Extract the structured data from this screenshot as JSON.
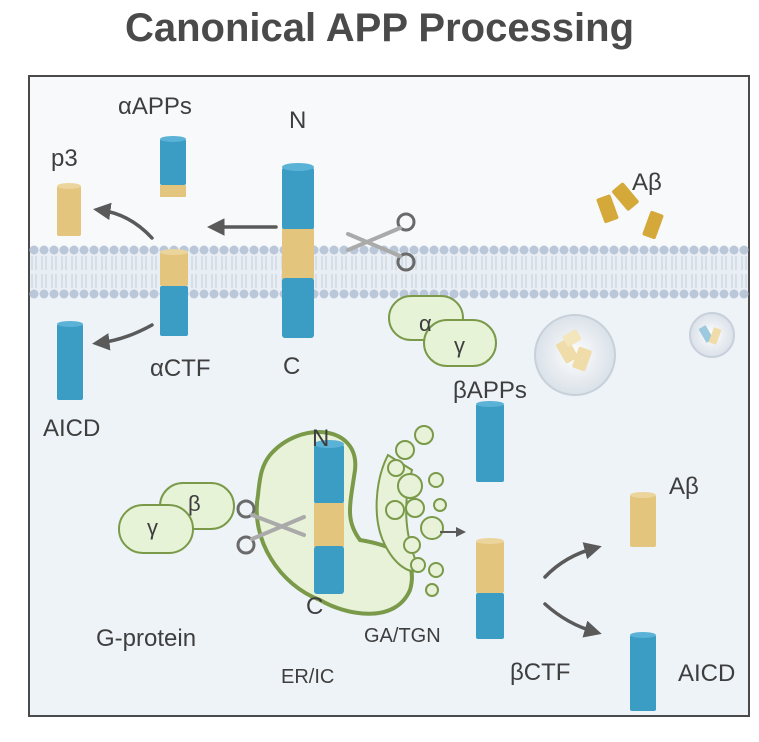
{
  "title": "Canonical APP Processing",
  "labels": {
    "alpha_apps": "αAPPs",
    "p3": "p3",
    "n_top": "N",
    "c_top": "C",
    "alpha_ctf": "αCTF",
    "aicd_left": "AICD",
    "abeta_top": "Aβ",
    "beta_apps": "βAPPs",
    "n_er": "N",
    "c_er": "C",
    "abeta_right": "Aβ",
    "beta_ctf": "βCTF",
    "aicd_right": "AICD",
    "g_protein": "G-protein",
    "er_ic": "ER/IC",
    "ga_tgn": "GA/TGN",
    "sub_alpha": "α",
    "sub_gamma_top": "γ",
    "sub_beta": "β",
    "sub_gamma_bottom": "γ"
  },
  "colors": {
    "protein_blue": "#3b9cc4",
    "protein_blue_dark": "#2f7fa3",
    "protein_tan": "#e3c57d",
    "protein_tan_dark": "#c9a95c",
    "abeta_gold": "#d4a93a",
    "cell_bg": "#eef3f8",
    "membrane": "#b9c7d8",
    "organelle_green": "#7a9a4a",
    "organelle_fill": "#e8f2d8",
    "arrow_gray": "#5a5a5a"
  },
  "icons": [
    "scissors-icon",
    "vesicle-icon",
    "arrow-icon"
  ]
}
